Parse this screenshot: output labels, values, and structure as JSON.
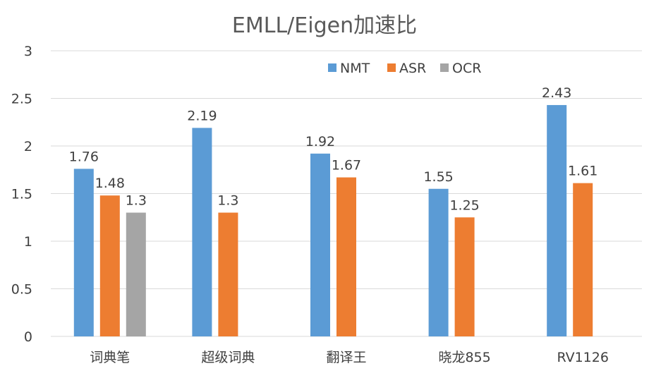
{
  "chart_data": {
    "type": "bar",
    "title": "EMLL/Eigen加速比",
    "xlabel": "",
    "ylabel": "",
    "categories": [
      "词典笔",
      "超级词典",
      "翻译王",
      "晓龙855",
      "RV1126"
    ],
    "series": [
      {
        "name": "NMT",
        "values": [
          1.76,
          2.19,
          1.92,
          1.55,
          2.43
        ]
      },
      {
        "name": "ASR",
        "values": [
          1.48,
          1.3,
          1.67,
          1.25,
          1.61
        ]
      },
      {
        "name": "OCR",
        "values": [
          1.3,
          null,
          null,
          null,
          null
        ]
      }
    ],
    "ylim": [
      0,
      3
    ],
    "yticks": [
      "0",
      "0.5",
      "1",
      "1.5",
      "2",
      "2.5",
      "3"
    ],
    "grid": true,
    "legend_position": "top-right",
    "data_labels": true
  },
  "colors": {
    "NMT": "#5b9bd5",
    "ASR": "#ed7d31",
    "OCR": "#a5a5a5",
    "grid": "#d9d9d9",
    "text": "#404040",
    "title": "#595959"
  }
}
